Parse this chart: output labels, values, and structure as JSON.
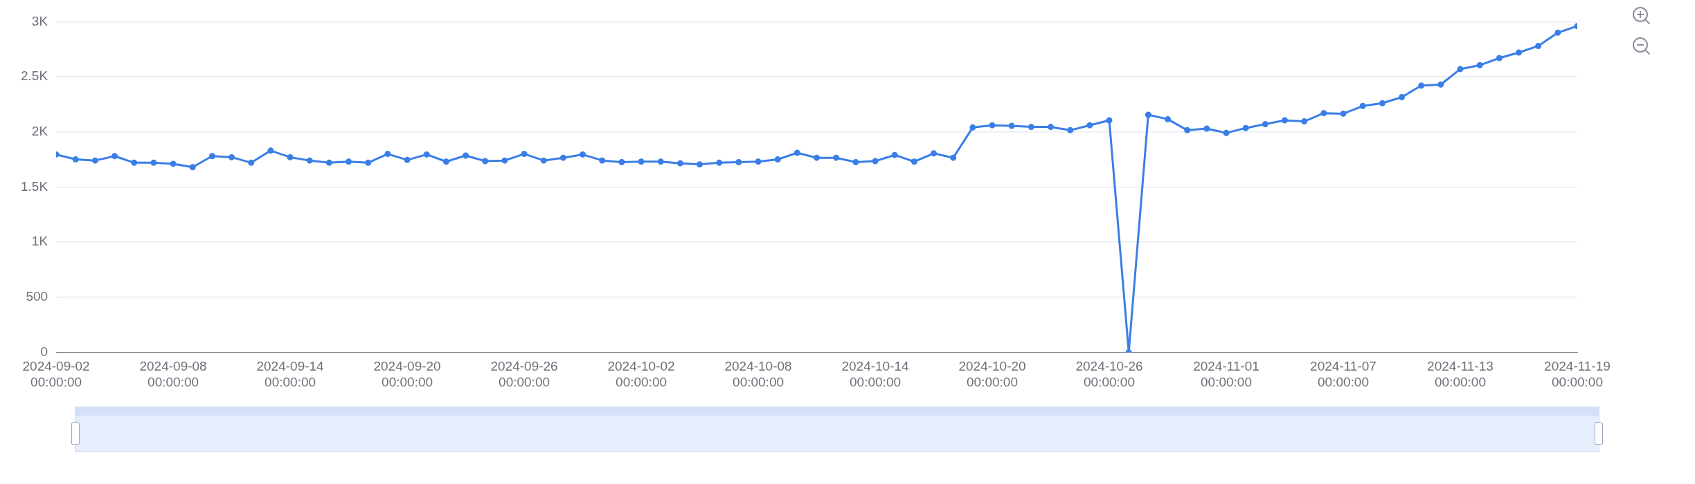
{
  "chart_data": {
    "type": "line",
    "x": [
      "2024-09-02",
      "2024-09-03",
      "2024-09-04",
      "2024-09-05",
      "2024-09-06",
      "2024-09-07",
      "2024-09-08",
      "2024-09-09",
      "2024-09-10",
      "2024-09-11",
      "2024-09-12",
      "2024-09-13",
      "2024-09-14",
      "2024-09-15",
      "2024-09-16",
      "2024-09-17",
      "2024-09-18",
      "2024-09-19",
      "2024-09-20",
      "2024-09-21",
      "2024-09-22",
      "2024-09-23",
      "2024-09-24",
      "2024-09-25",
      "2024-09-26",
      "2024-09-27",
      "2024-09-28",
      "2024-09-29",
      "2024-09-30",
      "2024-10-01",
      "2024-10-02",
      "2024-10-03",
      "2024-10-04",
      "2024-10-05",
      "2024-10-06",
      "2024-10-07",
      "2024-10-08",
      "2024-10-09",
      "2024-10-10",
      "2024-10-11",
      "2024-10-12",
      "2024-10-13",
      "2024-10-14",
      "2024-10-15",
      "2024-10-16",
      "2024-10-17",
      "2024-10-18",
      "2024-10-19",
      "2024-10-20",
      "2024-10-21",
      "2024-10-22",
      "2024-10-23",
      "2024-10-24",
      "2024-10-25",
      "2024-10-26",
      "2024-10-27",
      "2024-10-28",
      "2024-10-29",
      "2024-10-30",
      "2024-10-31",
      "2024-11-01",
      "2024-11-02",
      "2024-11-03",
      "2024-11-04",
      "2024-11-05",
      "2024-11-06",
      "2024-11-07",
      "2024-11-08",
      "2024-11-09",
      "2024-11-10",
      "2024-11-11",
      "2024-11-12",
      "2024-11-13",
      "2024-11-14",
      "2024-11-15",
      "2024-11-16",
      "2024-11-17",
      "2024-11-18",
      "2024-11-19"
    ],
    "series": [
      {
        "color": "#3a7ee6",
        "values": [
          1795,
          1750,
          1740,
          1780,
          1720,
          1720,
          1710,
          1680,
          1780,
          1770,
          1720,
          1830,
          1770,
          1740,
          1720,
          1730,
          1720,
          1800,
          1745,
          1795,
          1730,
          1785,
          1735,
          1740,
          1800,
          1740,
          1765,
          1795,
          1740,
          1725,
          1730,
          1730,
          1715,
          1705,
          1720,
          1725,
          1730,
          1750,
          1810,
          1765,
          1765,
          1725,
          1735,
          1790,
          1730,
          1805,
          1765,
          2040,
          2060,
          2055,
          2045,
          2045,
          2015,
          2060,
          2105,
          0,
          2155,
          2115,
          2015,
          2030,
          1990,
          2035,
          2070,
          2105,
          2095,
          2170,
          2165,
          2235,
          2260,
          2315,
          2420,
          2430,
          2570,
          2605,
          2670,
          2720,
          2780,
          2900,
          2960
        ]
      }
    ],
    "xlim": [
      "2024-09-02",
      "2024-11-19"
    ],
    "xticks": [
      {
        "value": "2024-09-02",
        "label": "2024-09-02 00:00:00"
      },
      {
        "value": "2024-09-08",
        "label": "2024-09-08 00:00:00"
      },
      {
        "value": "2024-09-14",
        "label": "2024-09-14 00:00:00"
      },
      {
        "value": "2024-09-20",
        "label": "2024-09-20 00:00:00"
      },
      {
        "value": "2024-09-26",
        "label": "2024-09-26 00:00:00"
      },
      {
        "value": "2024-10-02",
        "label": "2024-10-02 00:00:00"
      },
      {
        "value": "2024-10-08",
        "label": "2024-10-08 00:00:00"
      },
      {
        "value": "2024-10-14",
        "label": "2024-10-14 00:00:00"
      },
      {
        "value": "2024-10-20",
        "label": "2024-10-20 00:00:00"
      },
      {
        "value": "2024-10-26",
        "label": "2024-10-26 00:00:00"
      },
      {
        "value": "2024-11-01",
        "label": "2024-11-01 00:00:00"
      },
      {
        "value": "2024-11-07",
        "label": "2024-11-07 00:00:00"
      },
      {
        "value": "2024-11-13",
        "label": "2024-11-13 00:00:00"
      },
      {
        "value": "2024-11-19",
        "label": "2024-11-19 00:00:00"
      }
    ],
    "ylim": [
      0,
      3000
    ],
    "yticks": [
      0,
      500,
      {
        "value": 1000,
        "label": "1K"
      },
      {
        "value": 1500,
        "label": "1.5K"
      },
      {
        "value": 2000,
        "label": "2K"
      },
      {
        "value": 2500,
        "label": "2.5K"
      },
      {
        "value": 3000,
        "label": "3K"
      }
    ],
    "grid": "y",
    "legend": false,
    "marker": "circle",
    "line_style": "solid"
  }
}
